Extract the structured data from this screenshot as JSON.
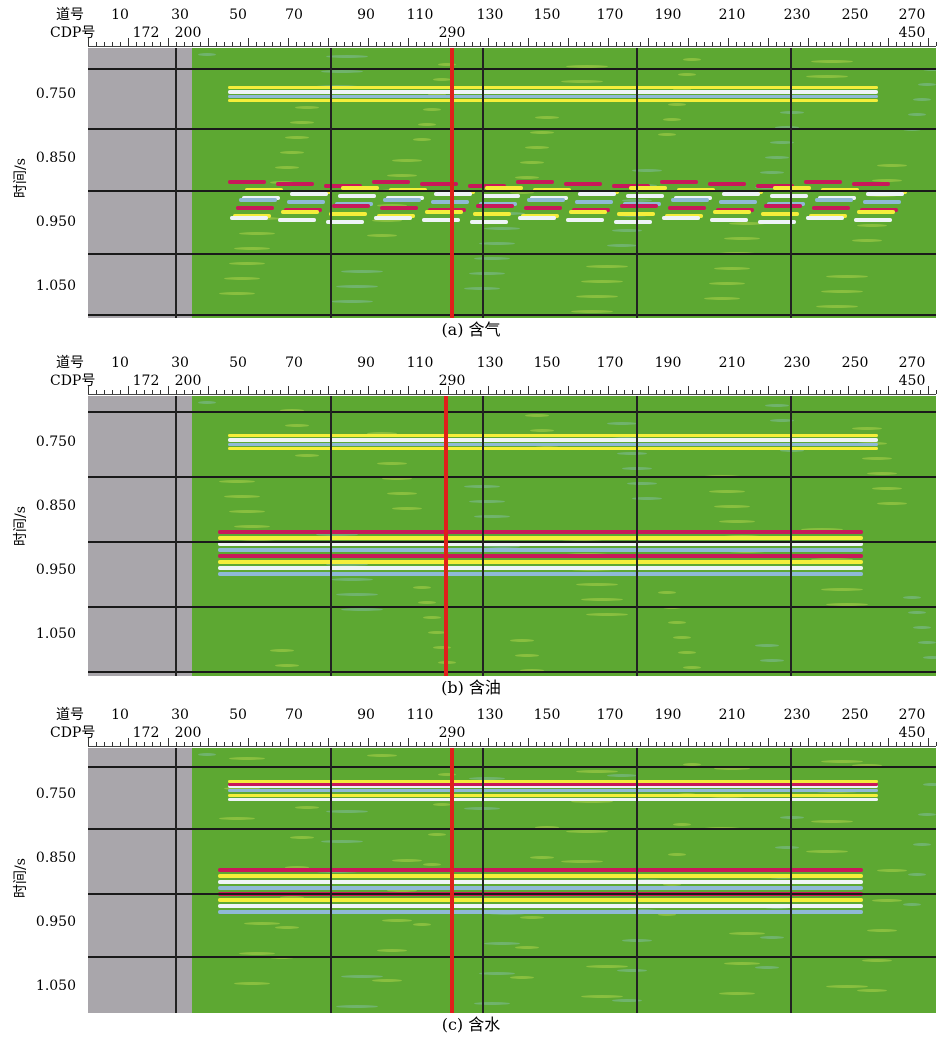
{
  "header_labels": {
    "trace": "道号",
    "cdp": "CDP号"
  },
  "trace_numbers": [
    "10",
    "30",
    "50",
    "70",
    "90",
    "110",
    "130",
    "150",
    "170",
    "190",
    "210",
    "230",
    "250",
    "270"
  ],
  "cdp_numbers": [
    "172",
    "200",
    "290",
    "450"
  ],
  "time_labels": [
    "0.750",
    "0.850",
    "0.950",
    "1.050"
  ],
  "y_axis_title": "时间/s",
  "panels": [
    {
      "id": "a",
      "caption": "(a)  含气"
    },
    {
      "id": "b",
      "caption": "(b)  含油"
    },
    {
      "id": "c",
      "caption": "(c)  含水"
    }
  ],
  "colors": {
    "background": "#5da832",
    "gray_zone": "#a9a6ab",
    "marker": "#e0201b",
    "peak": "#c8185a",
    "trough": "#eef4f7",
    "yellow": "#f4ee3a",
    "blue": "#8fb9d6"
  }
}
